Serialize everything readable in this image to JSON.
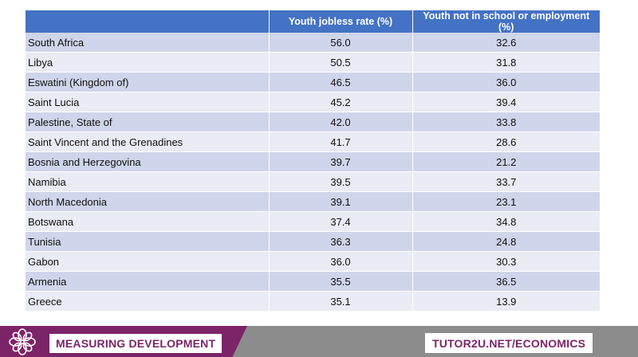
{
  "table": {
    "headers": [
      "",
      "Youth jobless rate (%)",
      "Youth not in school or employment (%)"
    ],
    "rows": [
      {
        "country": "South Africa",
        "jobless": "56.0",
        "neet": "32.6"
      },
      {
        "country": "Libya",
        "jobless": "50.5",
        "neet": "31.8"
      },
      {
        "country": "Eswatini (Kingdom of)",
        "jobless": "46.5",
        "neet": "36.0"
      },
      {
        "country": "Saint Lucia",
        "jobless": "45.2",
        "neet": "39.4"
      },
      {
        "country": "Palestine, State of",
        "jobless": "42.0",
        "neet": "33.8"
      },
      {
        "country": "Saint Vincent and the Grenadines",
        "jobless": "41.7",
        "neet": "28.6"
      },
      {
        "country": "Bosnia and Herzegovina",
        "jobless": "39.7",
        "neet": "21.2"
      },
      {
        "country": "Namibia",
        "jobless": "39.5",
        "neet": "33.7"
      },
      {
        "country": "North Macedonia",
        "jobless": "39.1",
        "neet": "23.1"
      },
      {
        "country": "Botswana",
        "jobless": "37.4",
        "neet": "34.8"
      },
      {
        "country": "Tunisia",
        "jobless": "36.3",
        "neet": "24.8"
      },
      {
        "country": "Gabon",
        "jobless": "36.0",
        "neet": "30.3"
      },
      {
        "country": "Armenia",
        "jobless": "35.5",
        "neet": "36.5"
      },
      {
        "country": "Greece",
        "jobless": "35.1",
        "neet": "13.9"
      }
    ]
  },
  "footer": {
    "left_label": "MEASURING DEVELOPMENT",
    "right_label": "TUTOR2U.NET/ECONOMICS",
    "logo_icon": "flower-logo-icon"
  },
  "colors": {
    "header_blue": "#4472c4",
    "row_dark": "#cfd5ea",
    "row_light": "#e9ebf5",
    "brand_purple": "#7b2468",
    "footer_gray": "#8c8c8c"
  }
}
